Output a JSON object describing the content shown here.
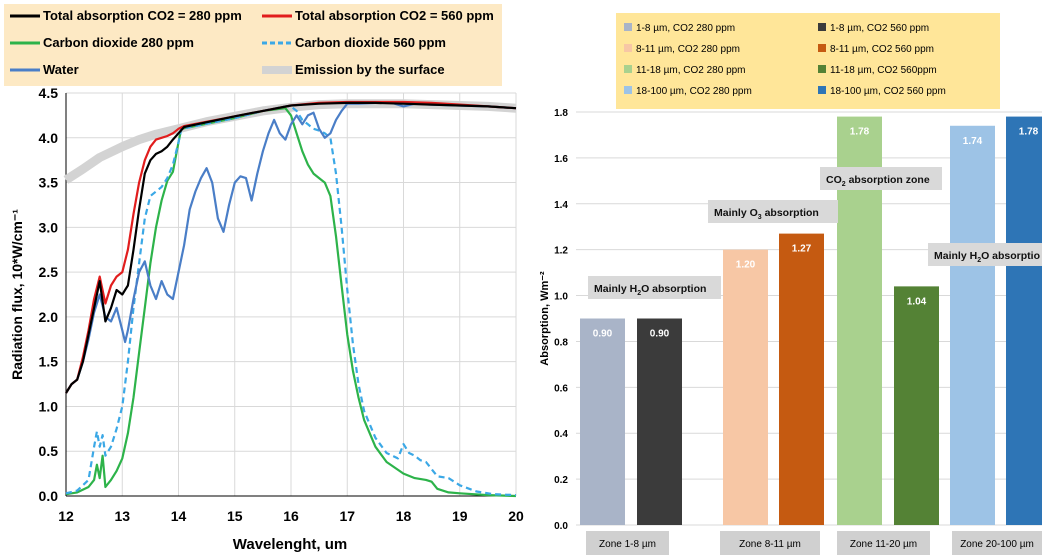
{
  "chart_data": [
    {
      "type": "line",
      "xlabel": "Wavelenght, um",
      "ylabel": "Radiation flux, 10*W/cm⁻¹",
      "xlim": [
        12,
        20
      ],
      "ylim": [
        0,
        4.5
      ],
      "xticks": [
        "12",
        "13",
        "14",
        "15",
        "16",
        "17",
        "18",
        "19",
        "20"
      ],
      "yticks": [
        "0.0",
        "0.5",
        "1.0",
        "1.5",
        "2.0",
        "2.5",
        "3.0",
        "3.5",
        "4.0",
        "4.5"
      ],
      "legend_position": "top",
      "grid": true,
      "series": [
        {
          "name": "Emission by the surface",
          "color": "#d3d3d3",
          "style": "thick",
          "x": [
            12.0,
            12.3,
            12.6,
            13.0,
            13.3,
            13.6,
            14.0,
            14.5,
            15.0,
            15.5,
            16.0,
            16.5,
            17.0,
            17.5,
            18.0,
            18.5,
            19.0,
            19.5,
            20.0
          ],
          "y": [
            3.53,
            3.65,
            3.78,
            3.9,
            3.98,
            4.04,
            4.1,
            4.18,
            4.24,
            4.3,
            4.34,
            4.37,
            4.38,
            4.38,
            4.38,
            4.37,
            4.36,
            4.35,
            4.33
          ]
        },
        {
          "name": "Carbon dioxide 280 ppm",
          "color": "#2db34a",
          "style": "solid",
          "x": [
            12.0,
            12.2,
            12.4,
            12.5,
            12.55,
            12.6,
            12.65,
            12.7,
            12.8,
            12.9,
            13.0,
            13.1,
            13.2,
            13.3,
            13.4,
            13.5,
            13.6,
            13.7,
            13.8,
            13.9,
            14.0,
            14.05,
            15.0,
            15.5,
            15.9,
            16.0,
            16.1,
            16.2,
            16.3,
            16.4,
            16.5,
            16.6,
            16.7,
            16.8,
            16.9,
            17.0,
            17.1,
            17.2,
            17.3,
            17.5,
            17.7,
            18.0,
            18.2,
            18.4,
            18.5,
            18.6,
            18.8,
            19.0,
            19.5,
            20.0
          ],
          "y": [
            0.02,
            0.04,
            0.1,
            0.18,
            0.35,
            0.2,
            0.45,
            0.1,
            0.18,
            0.28,
            0.42,
            0.7,
            1.1,
            1.6,
            2.1,
            2.6,
            3.0,
            3.3,
            3.52,
            3.62,
            3.95,
            4.1,
            4.22,
            4.3,
            4.33,
            4.25,
            4.05,
            3.85,
            3.7,
            3.6,
            3.55,
            3.5,
            3.35,
            2.9,
            2.35,
            1.8,
            1.4,
            1.1,
            0.85,
            0.55,
            0.38,
            0.25,
            0.2,
            0.18,
            0.16,
            0.08,
            0.04,
            0.03,
            0.01,
            0.0
          ]
        },
        {
          "name": "Carbon dioxide 560 ppm",
          "color": "#3ba8e6",
          "style": "dashed",
          "x": [
            12.0,
            12.2,
            12.4,
            12.5,
            12.55,
            12.6,
            12.65,
            12.7,
            12.8,
            12.9,
            13.0,
            13.1,
            13.2,
            13.3,
            13.4,
            13.5,
            13.6,
            13.7,
            13.8,
            13.9,
            14.0,
            14.05,
            15.0,
            15.5,
            15.9,
            16.0,
            16.1,
            16.2,
            16.3,
            16.4,
            16.5,
            16.6,
            16.7,
            16.8,
            16.9,
            17.0,
            17.1,
            17.2,
            17.3,
            17.5,
            17.7,
            17.9,
            18.0,
            18.1,
            18.2,
            18.3,
            18.4,
            18.5,
            18.6,
            18.8,
            19.0,
            19.3,
            19.6,
            20.0
          ],
          "y": [
            0.03,
            0.06,
            0.18,
            0.55,
            0.72,
            0.55,
            0.68,
            0.45,
            0.55,
            0.75,
            1.0,
            1.5,
            2.1,
            2.6,
            3.1,
            3.35,
            3.4,
            3.45,
            3.55,
            3.7,
            3.95,
            4.1,
            4.22,
            4.3,
            4.35,
            4.35,
            4.3,
            4.2,
            4.15,
            4.1,
            4.08,
            4.05,
            4.0,
            3.6,
            3.0,
            2.3,
            1.7,
            1.25,
            0.95,
            0.65,
            0.48,
            0.42,
            0.58,
            0.48,
            0.45,
            0.4,
            0.38,
            0.3,
            0.22,
            0.2,
            0.12,
            0.05,
            0.02,
            0.01
          ]
        },
        {
          "name": "Water",
          "color": "#4a7ec7",
          "style": "solid",
          "x": [
            12.0,
            12.1,
            12.2,
            12.3,
            12.4,
            12.5,
            12.6,
            12.7,
            12.8,
            12.9,
            13.0,
            13.05,
            13.1,
            13.2,
            13.3,
            13.4,
            13.5,
            13.6,
            13.7,
            13.8,
            13.9,
            14.0,
            14.1,
            14.2,
            14.3,
            14.4,
            14.5,
            14.6,
            14.7,
            14.8,
            14.9,
            15.0,
            15.1,
            15.2,
            15.3,
            15.4,
            15.5,
            15.6,
            15.7,
            15.8,
            15.9,
            16.0,
            16.1,
            16.2,
            16.3,
            16.4,
            16.5,
            16.6,
            16.7,
            16.8,
            16.9,
            17.0,
            17.2,
            17.5,
            17.8,
            18.0,
            18.2,
            18.5,
            19.0,
            19.5,
            20.0
          ],
          "y": [
            1.15,
            1.25,
            1.3,
            1.5,
            1.75,
            2.05,
            2.25,
            2.0,
            1.95,
            2.1,
            1.85,
            1.72,
            1.85,
            2.2,
            2.5,
            2.62,
            2.35,
            2.2,
            2.4,
            2.25,
            2.2,
            2.5,
            2.8,
            3.2,
            3.4,
            3.55,
            3.66,
            3.5,
            3.1,
            2.95,
            3.25,
            3.5,
            3.57,
            3.55,
            3.3,
            3.6,
            3.85,
            4.05,
            4.2,
            4.05,
            3.98,
            4.15,
            4.25,
            4.15,
            4.25,
            4.28,
            4.1,
            4.0,
            4.05,
            4.2,
            4.3,
            4.38,
            4.38,
            4.39,
            4.39,
            4.35,
            4.38,
            4.37,
            4.36,
            4.35,
            4.33
          ]
        },
        {
          "name": "Total absorption CO2 = 560 ppm",
          "color": "#e11d1d",
          "style": "solid",
          "x": [
            12.0,
            12.1,
            12.2,
            12.3,
            12.4,
            12.5,
            12.6,
            12.7,
            12.8,
            12.9,
            13.0,
            13.1,
            13.2,
            13.3,
            13.4,
            13.5,
            13.6,
            13.7,
            13.8,
            13.9,
            14.0,
            14.1,
            15.0,
            15.5,
            16.0,
            16.5,
            17.0,
            17.5,
            18.0,
            18.5,
            19.0,
            19.5,
            20.0
          ],
          "y": [
            1.15,
            1.25,
            1.3,
            1.55,
            1.85,
            2.2,
            2.45,
            2.15,
            2.35,
            2.45,
            2.5,
            2.75,
            3.15,
            3.5,
            3.75,
            3.9,
            3.98,
            4.0,
            4.02,
            4.05,
            4.1,
            4.13,
            4.24,
            4.3,
            4.36,
            4.39,
            4.4,
            4.4,
            4.4,
            4.39,
            4.37,
            4.35,
            4.33
          ]
        },
        {
          "name": "Total absorption CO2 = 280 ppm",
          "color": "#000000",
          "style": "solid",
          "x": [
            12.0,
            12.1,
            12.2,
            12.3,
            12.4,
            12.5,
            12.6,
            12.7,
            12.8,
            12.9,
            13.0,
            13.1,
            13.2,
            13.3,
            13.4,
            13.5,
            13.6,
            13.7,
            13.8,
            13.9,
            14.0,
            14.1,
            15.0,
            15.5,
            16.0,
            16.5,
            17.0,
            17.5,
            18.0,
            18.5,
            19.0,
            19.5,
            20.0
          ],
          "y": [
            1.15,
            1.25,
            1.3,
            1.5,
            1.8,
            2.1,
            2.4,
            1.95,
            2.1,
            2.3,
            2.25,
            2.35,
            2.75,
            3.2,
            3.6,
            3.75,
            3.82,
            3.85,
            3.9,
            3.98,
            4.05,
            4.12,
            4.24,
            4.3,
            4.36,
            4.38,
            4.39,
            4.39,
            4.38,
            4.37,
            4.36,
            4.35,
            4.33
          ]
        }
      ],
      "legend_order": [
        "Total absorption CO2 = 280 ppm",
        "Total absorption CO2 = 560 ppm",
        "Carbon dioxide 280 ppm",
        "Carbon dioxide 560 ppm",
        "Water",
        "Emission by the surface"
      ]
    },
    {
      "type": "bar",
      "ylabel": "Absorption, Wm⁻²",
      "ylim": [
        0,
        1.8
      ],
      "yticks": [
        "0.0",
        "0.2",
        "0.4",
        "0.6",
        "0.8",
        "1.0",
        "1.2",
        "1.4",
        "1.6",
        "1.8"
      ],
      "grid": true,
      "legend_position": "top",
      "categories": [
        "Zone 1-8 µm",
        "Zone 8-11 µm",
        "Zone 11-20 µm",
        "Zone 20-100 µm"
      ],
      "series": [
        {
          "name": "1-8 µm, CO2 280 ppm",
          "color": "#a9b4c8",
          "category": 0,
          "value": 0.9,
          "label": "0.90",
          "label_color": "#000000"
        },
        {
          "name": "1-8 µm, CO2 560 ppm",
          "color": "#3b3b3b",
          "category": 0,
          "value": 0.9,
          "label": "0.90",
          "label_color": "#ffffff"
        },
        {
          "name": "8-11 µm, CO2 280 ppm",
          "color": "#f7c7a5",
          "category": 1,
          "value": 1.2,
          "label": "1.20",
          "label_color": "#000000"
        },
        {
          "name": "8-11 µm, CO2 560 ppm",
          "color": "#c55a11",
          "category": 1,
          "value": 1.27,
          "label": "1.27",
          "label_color": "#ffffff"
        },
        {
          "name": "11-18 µm, CO2 280 ppm",
          "color": "#a9d18e",
          "category": 2,
          "value": 1.78,
          "label": "1.78",
          "label_color": "#ffffff"
        },
        {
          "name": "11-18 µm, CO2 560ppm",
          "color": "#548235",
          "category": 2,
          "value": 1.04,
          "label": "1.04",
          "label_color": "#ffffff"
        },
        {
          "name": "18-100 µm, CO2 280 ppm",
          "color": "#9dc3e6",
          "category": 3,
          "value": 1.74,
          "label": "1.74",
          "label_color": "#000000"
        },
        {
          "name": "18-100 µm,  CO2 560 ppm",
          "color": "#2e75b6",
          "category": 3,
          "value": 1.78,
          "label": "1.78",
          "label_color": "#ffffff"
        }
      ],
      "annotations": {
        "h2o_low": {
          "text_pre": "Mainly H",
          "sub": "2",
          "text_post": "O absorption"
        },
        "o3": {
          "text_pre": "Mainly O",
          "sub": "3",
          "text_post": " absorption"
        },
        "co2": {
          "text_pre": "CO",
          "sub": "2",
          "text_post": " absorption zone"
        },
        "h2o_high": {
          "text_pre": "Mainly H",
          "sub": "2",
          "text_post": "O absorptio"
        }
      }
    }
  ]
}
